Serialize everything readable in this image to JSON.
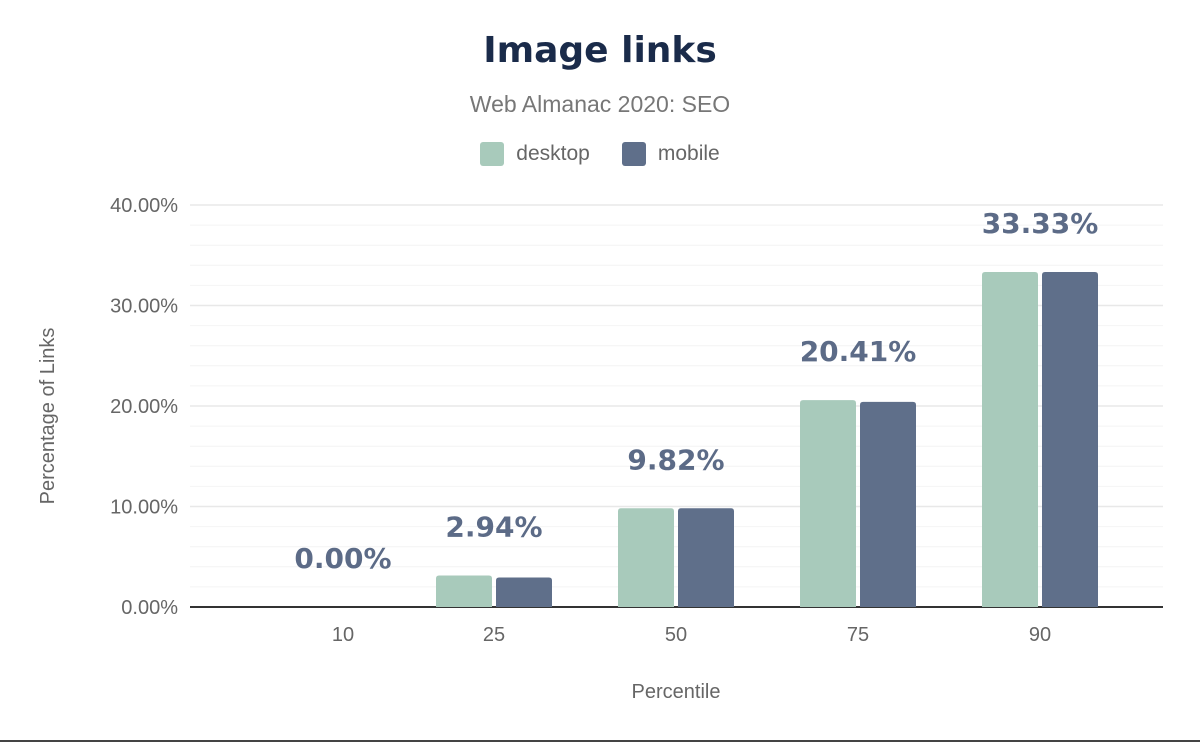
{
  "chart_data": {
    "type": "bar",
    "title": "Image links",
    "subtitle": "Web Almanac 2020: SEO",
    "xlabel": "Percentile",
    "ylabel": "Percentage of Links",
    "categories": [
      "10",
      "25",
      "50",
      "75",
      "90"
    ],
    "series": [
      {
        "name": "desktop",
        "color": "#a8cabb",
        "values": [
          0.0,
          3.13,
          9.82,
          20.59,
          33.33
        ]
      },
      {
        "name": "mobile",
        "color": "#5f6f8a",
        "values": [
          0.0,
          2.94,
          9.82,
          20.41,
          33.33
        ]
      }
    ],
    "data_labels": [
      "0.00%",
      "2.94%",
      "9.82%",
      "20.41%",
      "33.33%"
    ],
    "yticks": [
      "0.00%",
      "10.00%",
      "20.00%",
      "30.00%",
      "40.00%"
    ],
    "ylim": [
      0,
      40
    ],
    "grid": true,
    "legend_position": "top"
  }
}
